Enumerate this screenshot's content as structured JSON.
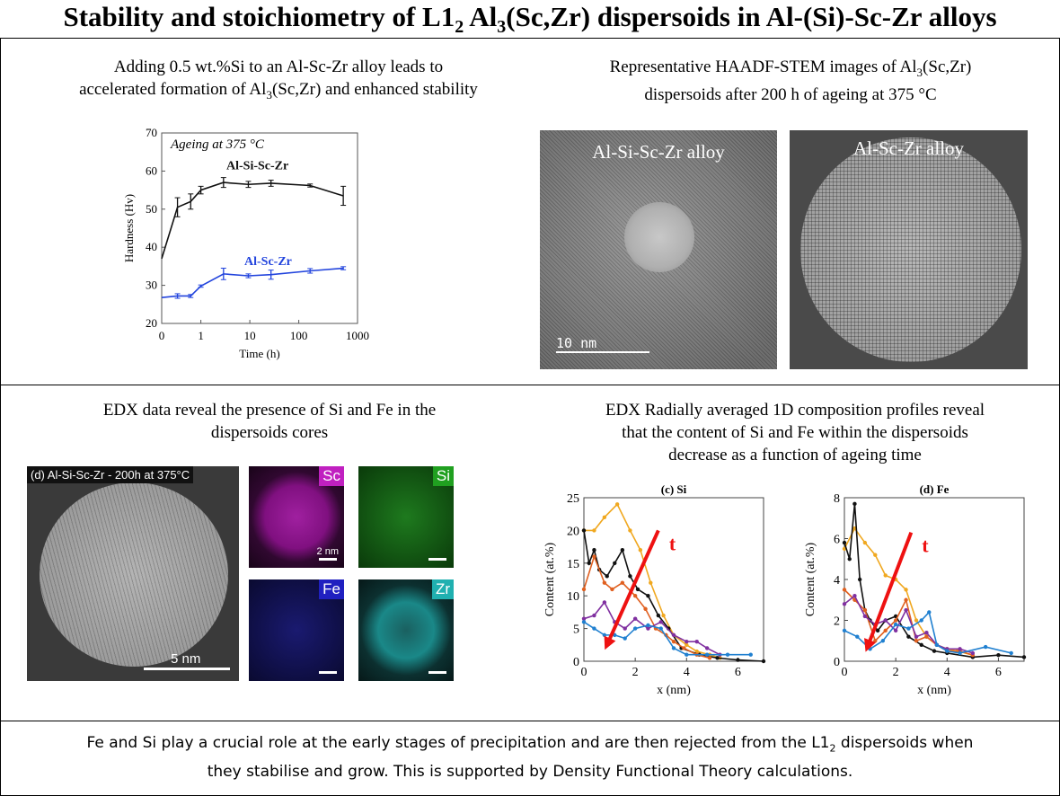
{
  "title": {
    "pre": "Stability and stoichiometry of L1",
    "sub1": "2",
    "mid": " Al",
    "sub2": "3",
    "post": "(Sc,Zr) dispersoids in Al-(Si)-Sc-Zr alloys"
  },
  "panel1": {
    "caption_line1": "Adding 0.5 wt.%Si to an Al-Sc-Zr alloy leads to",
    "caption_line2_pre": "accelerated formation of Al",
    "caption_line2_sub": "3",
    "caption_line2_post": "(Sc,Zr) and enhanced stability"
  },
  "panel2": {
    "caption_line1_pre": "Representative HAADF-STEM images of Al",
    "caption_line1_sub": "3",
    "caption_line1_post": "(Sc,Zr)",
    "caption_line2": "dispersoids after 200 h of ageing at 375 °C",
    "image_left_label": "Al-Si-Sc-Zr alloy",
    "image_right_label": "Al-Sc-Zr alloy",
    "scalebar_label": "10 nm"
  },
  "panel3": {
    "caption_line1": "EDX data reveal the presence of Si and Fe in the",
    "caption_line2": "dispersoids cores",
    "image_label": "(d) Al-Si-Sc-Zr - 200h at 375°C",
    "scalebar_label": "5 nm",
    "map_scale_label": "2 nm",
    "maps": [
      {
        "element": "Sc",
        "color": "#c020c0"
      },
      {
        "element": "Si",
        "color": "#20a020"
      },
      {
        "element": "Fe",
        "color": "#2020c0"
      },
      {
        "element": "Zr",
        "color": "#20b0b0"
      }
    ]
  },
  "panel4": {
    "caption_line1": "EDX Radially averaged 1D composition profiles reveal",
    "caption_line2": "that the content of Si and Fe within the dispersoids",
    "caption_line3": "decrease as a function of ageing time",
    "arrow_label": "t"
  },
  "conclusion": {
    "line1_pre": "Fe and Si play a crucial role at the early stages of precipitation and are then rejected from the L1",
    "line1_sub": "2",
    "line1_post": " dispersoids when",
    "line2": "they stabilise and grow. This is supported by Density Functional Theory calculations."
  },
  "chart_data": [
    {
      "type": "line",
      "title": "",
      "annotation": "Ageing at 375 °C",
      "xlabel": "Time (h)",
      "ylabel": "Hardness (Hv)",
      "xscale": "log (with 0)",
      "xticks": [
        "0",
        "1",
        "10",
        "100",
        "1000"
      ],
      "yticks": [
        "20",
        "30",
        "40",
        "50",
        "60",
        "70"
      ],
      "ylim": [
        20,
        70
      ],
      "series": [
        {
          "name": "Al-Si-Sc-Zr",
          "color": "#111111",
          "x": [
            0,
            0.17,
            0.5,
            1,
            3,
            10,
            30,
            200,
            1000
          ],
          "y": [
            37,
            50.5,
            52,
            55,
            57,
            56.5,
            56.8,
            56.2,
            53.5
          ],
          "err": [
            0,
            2.5,
            2,
            1,
            1.3,
            0.8,
            0.8,
            0.4,
            2.5
          ]
        },
        {
          "name": "Al-Sc-Zr",
          "color": "#2244dd",
          "x": [
            0,
            0.17,
            0.5,
            1,
            3,
            10,
            30,
            200,
            1000
          ],
          "y": [
            26.8,
            27.2,
            27.2,
            29.8,
            33,
            32.5,
            32.8,
            33.8,
            34.5
          ],
          "err": [
            0,
            0.6,
            0.4,
            0.3,
            1.5,
            0.5,
            1.2,
            0.6,
            0.4
          ]
        }
      ]
    },
    {
      "type": "line",
      "title": "(c) Si",
      "xlabel": "x (nm)",
      "ylabel": "Content (at.%)",
      "xlim": [
        0,
        7
      ],
      "ylim": [
        0,
        25
      ],
      "xticks": [
        "0",
        "2",
        "4",
        "6"
      ],
      "yticks": [
        "0",
        "5",
        "10",
        "15",
        "20",
        "25"
      ],
      "series": [
        {
          "color": "#f0a820",
          "x": [
            0,
            0.4,
            0.8,
            1.3,
            1.8,
            2.2,
            2.6,
            3.1,
            3.5,
            4.0,
            4.4,
            4.9,
            5.3
          ],
          "y": [
            20,
            20,
            22,
            24,
            20,
            17,
            12,
            7,
            4,
            2.5,
            1.5,
            1,
            0.5
          ]
        },
        {
          "color": "#111111",
          "x": [
            0,
            0.2,
            0.4,
            0.6,
            0.9,
            1.2,
            1.5,
            1.8,
            2.1,
            2.5,
            2.9,
            3.3,
            3.8,
            4.5,
            5.2,
            6,
            7
          ],
          "y": [
            20,
            15,
            17,
            14,
            13,
            15,
            17,
            13,
            11,
            10,
            7,
            5,
            2,
            1,
            0.5,
            0.2,
            0
          ]
        },
        {
          "color": "#e06020",
          "x": [
            0,
            0.4,
            0.8,
            1.1,
            1.5,
            2.0,
            2.4,
            2.8,
            3.2,
            3.5,
            3.9,
            4.4,
            4.9
          ],
          "y": [
            11,
            16,
            12,
            11,
            12,
            10,
            8,
            5,
            4,
            3,
            2,
            1,
            0.5
          ]
        },
        {
          "color": "#8030a0",
          "x": [
            0,
            0.4,
            0.8,
            1.2,
            1.6,
            2.0,
            2.5,
            3.0,
            3.5,
            4.0,
            4.4,
            4.8,
            5.3
          ],
          "y": [
            6.5,
            7,
            9,
            6,
            5,
            6.5,
            5,
            6,
            4,
            3,
            3,
            2,
            1
          ]
        },
        {
          "color": "#2080d0",
          "x": [
            0,
            0.4,
            0.8,
            1.2,
            1.6,
            2.0,
            2.5,
            3.0,
            3.5,
            4.0,
            4.8,
            5.6,
            6.5
          ],
          "y": [
            6,
            5,
            4,
            4,
            3.5,
            5,
            5.5,
            5,
            2,
            1,
            1,
            1,
            1
          ]
        }
      ]
    },
    {
      "type": "line",
      "title": "(d) Fe",
      "xlabel": "x (nm)",
      "ylabel": "Content (at.%)",
      "xlim": [
        0,
        7
      ],
      "ylim": [
        0,
        8
      ],
      "xticks": [
        "0",
        "2",
        "4",
        "6"
      ],
      "yticks": [
        "0",
        "2",
        "4",
        "6",
        "8"
      ],
      "series": [
        {
          "color": "#f0a820",
          "x": [
            0,
            0.4,
            0.8,
            1.2,
            1.6,
            2.0,
            2.4,
            2.8,
            3.2,
            3.6,
            4.0,
            4.4,
            5.0
          ],
          "y": [
            5.5,
            6.5,
            5.8,
            5.2,
            4.2,
            4,
            3.5,
            2,
            1.2,
            0.8,
            0.6,
            0.5,
            0.3
          ]
        },
        {
          "color": "#111111",
          "x": [
            0,
            0.2,
            0.4,
            0.6,
            0.8,
            1.0,
            1.3,
            1.6,
            2.0,
            2.5,
            3.0,
            3.5,
            4.0,
            5,
            6,
            7
          ],
          "y": [
            5.8,
            5,
            7.7,
            4,
            2.5,
            2,
            1.5,
            2,
            2.2,
            1.2,
            0.8,
            0.5,
            0.4,
            0.2,
            0.3,
            0.2
          ]
        },
        {
          "color": "#e06020",
          "x": [
            0,
            0.4,
            0.8,
            1.2,
            1.6,
            2.0,
            2.4,
            2.8,
            3.2,
            3.6,
            4.0,
            4.5,
            5.0
          ],
          "y": [
            3.5,
            3,
            2.5,
            1,
            1.5,
            2,
            3,
            1,
            1.2,
            0.8,
            0.5,
            0.5,
            0.3
          ]
        },
        {
          "color": "#8030a0",
          "x": [
            0,
            0.4,
            0.8,
            1.2,
            1.6,
            2.0,
            2.4,
            2.8,
            3.2,
            3.6,
            4.0,
            4.5,
            5.0
          ],
          "y": [
            2.8,
            3.2,
            2.2,
            1.8,
            2,
            1.5,
            2.5,
            1.2,
            1.4,
            0.8,
            0.6,
            0.6,
            0.4
          ]
        },
        {
          "color": "#2080d0",
          "x": [
            0,
            0.5,
            1.0,
            1.5,
            2.0,
            2.5,
            3.0,
            3.3,
            3.6,
            4.0,
            4.5,
            5.5,
            6.5
          ],
          "y": [
            1.5,
            1.2,
            0.6,
            1,
            1.8,
            1.6,
            2,
            2.4,
            0.8,
            0.5,
            0.4,
            0.7,
            0.4
          ]
        }
      ]
    }
  ]
}
